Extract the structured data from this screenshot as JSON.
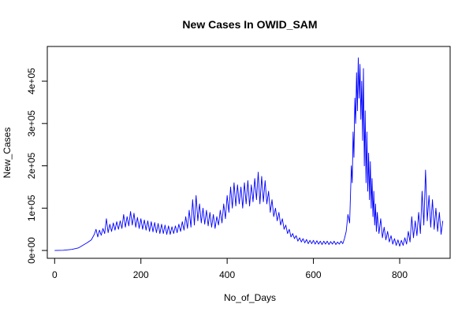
{
  "chart_data": {
    "type": "line",
    "title": "New Cases In OWID_SAM",
    "xlabel": "No_of_Days",
    "ylabel": "New_Cases",
    "xlim": [
      -17,
      917
    ],
    "ylim": [
      -18500,
      482000
    ],
    "grid": false,
    "x_ticks": [
      {
        "value": 0,
        "label": "0"
      },
      {
        "value": 200,
        "label": "200"
      },
      {
        "value": 400,
        "label": "400"
      },
      {
        "value": 600,
        "label": "600"
      },
      {
        "value": 800,
        "label": "800"
      }
    ],
    "y_ticks": [
      {
        "value": 0,
        "label": "0e+00"
      },
      {
        "value": 100000,
        "label": "1e+05"
      },
      {
        "value": 200000,
        "label": "2e+05"
      },
      {
        "value": 300000,
        "label": "3e+05"
      },
      {
        "value": 400000,
        "label": "4e+05"
      }
    ],
    "series": [
      {
        "color": "#0000ff",
        "points": [
          [
            0,
            0
          ],
          [
            20,
            500
          ],
          [
            40,
            2500
          ],
          [
            55,
            6000
          ],
          [
            65,
            12000
          ],
          [
            75,
            18000
          ],
          [
            85,
            25000
          ],
          [
            92,
            38000
          ],
          [
            96,
            50000
          ],
          [
            100,
            32000
          ],
          [
            104,
            48000
          ],
          [
            108,
            36000
          ],
          [
            112,
            52000
          ],
          [
            116,
            40000
          ],
          [
            120,
            75000
          ],
          [
            124,
            42000
          ],
          [
            128,
            62000
          ],
          [
            132,
            45000
          ],
          [
            136,
            65000
          ],
          [
            140,
            48000
          ],
          [
            144,
            68000
          ],
          [
            148,
            50000
          ],
          [
            152,
            70000
          ],
          [
            156,
            52000
          ],
          [
            160,
            85000
          ],
          [
            164,
            55000
          ],
          [
            168,
            80000
          ],
          [
            172,
            58000
          ],
          [
            176,
            92000
          ],
          [
            180,
            60000
          ],
          [
            184,
            88000
          ],
          [
            188,
            55000
          ],
          [
            192,
            78000
          ],
          [
            196,
            52000
          ],
          [
            200,
            75000
          ],
          [
            204,
            50000
          ],
          [
            208,
            72000
          ],
          [
            212,
            48000
          ],
          [
            216,
            70000
          ],
          [
            220,
            45000
          ],
          [
            224,
            68000
          ],
          [
            228,
            44000
          ],
          [
            232,
            66000
          ],
          [
            236,
            42000
          ],
          [
            240,
            64000
          ],
          [
            244,
            40000
          ],
          [
            248,
            62000
          ],
          [
            252,
            40000
          ],
          [
            256,
            60000
          ],
          [
            260,
            38000
          ],
          [
            264,
            58000
          ],
          [
            268,
            38000
          ],
          [
            272,
            56000
          ],
          [
            276,
            40000
          ],
          [
            280,
            58000
          ],
          [
            284,
            42000
          ],
          [
            288,
            62000
          ],
          [
            292,
            45000
          ],
          [
            296,
            68000
          ],
          [
            300,
            48000
          ],
          [
            304,
            80000
          ],
          [
            308,
            52000
          ],
          [
            312,
            95000
          ],
          [
            316,
            55000
          ],
          [
            320,
            120000
          ],
          [
            324,
            60000
          ],
          [
            328,
            130000
          ],
          [
            332,
            70000
          ],
          [
            336,
            110000
          ],
          [
            340,
            65000
          ],
          [
            344,
            100000
          ],
          [
            348,
            62000
          ],
          [
            352,
            95000
          ],
          [
            356,
            58000
          ],
          [
            360,
            90000
          ],
          [
            364,
            55000
          ],
          [
            368,
            85000
          ],
          [
            372,
            52000
          ],
          [
            376,
            80000
          ],
          [
            380,
            60000
          ],
          [
            384,
            95000
          ],
          [
            388,
            65000
          ],
          [
            392,
            110000
          ],
          [
            396,
            75000
          ],
          [
            400,
            130000
          ],
          [
            404,
            90000
          ],
          [
            408,
            150000
          ],
          [
            412,
            100000
          ],
          [
            416,
            160000
          ],
          [
            420,
            105000
          ],
          [
            424,
            155000
          ],
          [
            428,
            110000
          ],
          [
            432,
            150000
          ],
          [
            436,
            100000
          ],
          [
            440,
            160000
          ],
          [
            444,
            110000
          ],
          [
            448,
            165000
          ],
          [
            452,
            105000
          ],
          [
            456,
            155000
          ],
          [
            460,
            115000
          ],
          [
            464,
            170000
          ],
          [
            468,
            120000
          ],
          [
            472,
            185000
          ],
          [
            476,
            110000
          ],
          [
            480,
            175000
          ],
          [
            484,
            115000
          ],
          [
            488,
            165000
          ],
          [
            492,
            110000
          ],
          [
            496,
            140000
          ],
          [
            500,
            90000
          ],
          [
            504,
            120000
          ],
          [
            508,
            80000
          ],
          [
            512,
            100000
          ],
          [
            516,
            70000
          ],
          [
            520,
            90000
          ],
          [
            524,
            60000
          ],
          [
            528,
            75000
          ],
          [
            532,
            50000
          ],
          [
            536,
            60000
          ],
          [
            540,
            40000
          ],
          [
            544,
            50000
          ],
          [
            548,
            32000
          ],
          [
            552,
            40000
          ],
          [
            556,
            28000
          ],
          [
            560,
            35000
          ],
          [
            564,
            22000
          ],
          [
            568,
            30000
          ],
          [
            572,
            20000
          ],
          [
            576,
            28000
          ],
          [
            580,
            18000
          ],
          [
            584,
            26000
          ],
          [
            588,
            16000
          ],
          [
            592,
            24000
          ],
          [
            596,
            16000
          ],
          [
            600,
            24000
          ],
          [
            604,
            15000
          ],
          [
            608,
            23000
          ],
          [
            612,
            15000
          ],
          [
            616,
            22000
          ],
          [
            620,
            14000
          ],
          [
            624,
            22000
          ],
          [
            628,
            15000
          ],
          [
            632,
            22000
          ],
          [
            636,
            14000
          ],
          [
            640,
            21000
          ],
          [
            644,
            15000
          ],
          [
            648,
            22000
          ],
          [
            652,
            14000
          ],
          [
            656,
            20000
          ],
          [
            660,
            15000
          ],
          [
            664,
            22000
          ],
          [
            668,
            16000
          ],
          [
            672,
            28000
          ],
          [
            676,
            45000
          ],
          [
            680,
            85000
          ],
          [
            684,
            65000
          ],
          [
            688,
            200000
          ],
          [
            690,
            160000
          ],
          [
            692,
            280000
          ],
          [
            694,
            220000
          ],
          [
            696,
            360000
          ],
          [
            698,
            300000
          ],
          [
            700,
            420000
          ],
          [
            702,
            330000
          ],
          [
            704,
            455000
          ],
          [
            706,
            360000
          ],
          [
            708,
            440000
          ],
          [
            710,
            310000
          ],
          [
            712,
            400000
          ],
          [
            714,
            260000
          ],
          [
            716,
            430000
          ],
          [
            718,
            200000
          ],
          [
            720,
            330000
          ],
          [
            722,
            160000
          ],
          [
            724,
            280000
          ],
          [
            726,
            140000
          ],
          [
            728,
            230000
          ],
          [
            730,
            120000
          ],
          [
            732,
            210000
          ],
          [
            734,
            100000
          ],
          [
            736,
            170000
          ],
          [
            738,
            80000
          ],
          [
            740,
            140000
          ],
          [
            742,
            60000
          ],
          [
            744,
            110000
          ],
          [
            746,
            45000
          ],
          [
            748,
            90000
          ],
          [
            752,
            40000
          ],
          [
            756,
            75000
          ],
          [
            760,
            30000
          ],
          [
            764,
            55000
          ],
          [
            768,
            25000
          ],
          [
            772,
            45000
          ],
          [
            776,
            20000
          ],
          [
            780,
            35000
          ],
          [
            784,
            15000
          ],
          [
            788,
            28000
          ],
          [
            792,
            12000
          ],
          [
            796,
            25000
          ],
          [
            800,
            10000
          ],
          [
            804,
            24000
          ],
          [
            808,
            12000
          ],
          [
            812,
            30000
          ],
          [
            816,
            15000
          ],
          [
            820,
            45000
          ],
          [
            824,
            20000
          ],
          [
            828,
            80000
          ],
          [
            832,
            30000
          ],
          [
            836,
            70000
          ],
          [
            840,
            35000
          ],
          [
            844,
            90000
          ],
          [
            848,
            40000
          ],
          [
            852,
            140000
          ],
          [
            856,
            60000
          ],
          [
            860,
            190000
          ],
          [
            864,
            70000
          ],
          [
            868,
            130000
          ],
          [
            872,
            55000
          ],
          [
            876,
            120000
          ],
          [
            880,
            50000
          ],
          [
            884,
            100000
          ],
          [
            888,
            45000
          ],
          [
            892,
            90000
          ],
          [
            896,
            38000
          ],
          [
            900,
            70000
          ]
        ]
      }
    ]
  }
}
